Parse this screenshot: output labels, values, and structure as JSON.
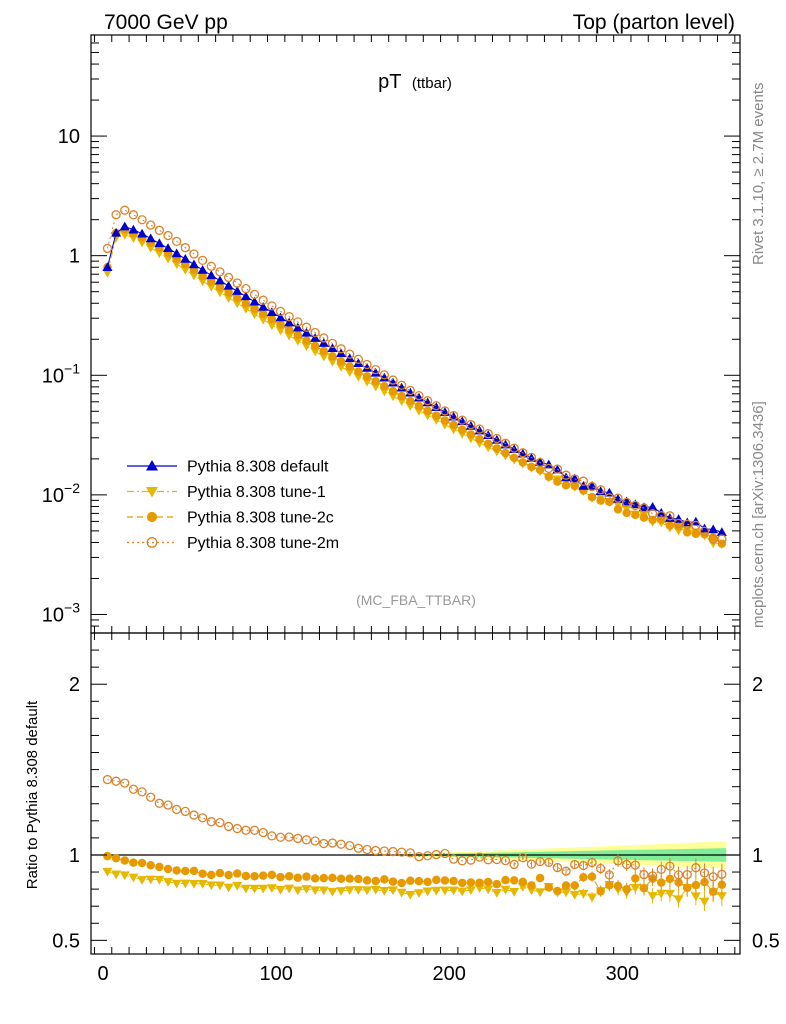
{
  "header": {
    "left": "7000 GeV pp",
    "right": "Top (parton level)"
  },
  "side_text": {
    "top": "Rivet 3.1.10, ≥ 2.7M events",
    "bottom": "mcplots.cern.ch [arXiv:1306.3436]"
  },
  "chart_data": [
    {
      "type": "scatter",
      "panel": "main",
      "title_main": "pT",
      "title_sub": "(ttbar)",
      "analysis_label": "(MC_FBA_TTBAR)",
      "yscale": "log",
      "ylim": [
        0.0007,
        70
      ],
      "xlim": [
        -7,
        368
      ],
      "ytick_labels": [
        {
          "value": 10,
          "mant": "10",
          "exp": ""
        },
        {
          "value": 1,
          "mant": "1",
          "exp": ""
        },
        {
          "value": 0.1,
          "mant": "10",
          "exp": "−1"
        },
        {
          "value": 0.01,
          "mant": "10",
          "exp": "−2"
        },
        {
          "value": 0.001,
          "mant": "10",
          "exp": "−3"
        }
      ],
      "legend_position": "lower-left",
      "series": [
        {
          "name": "Pythia 8.308 default",
          "color": "#0000cc",
          "marker": "triangle-up",
          "line": "solid",
          "nodes": [
            [
              2.5,
              0.8
            ],
            [
              7.5,
              1.55
            ],
            [
              12.5,
              1.75
            ],
            [
              20,
              1.6
            ],
            [
              40,
              1.1
            ],
            [
              60,
              0.72
            ],
            [
              80,
              0.48
            ],
            [
              100,
              0.32
            ],
            [
              120,
              0.215
            ],
            [
              140,
              0.145
            ],
            [
              160,
              0.1
            ],
            [
              180,
              0.068
            ],
            [
              200,
              0.047
            ],
            [
              220,
              0.033
            ],
            [
              240,
              0.023
            ],
            [
              260,
              0.0165
            ],
            [
              280,
              0.012
            ],
            [
              300,
              0.0092
            ],
            [
              320,
              0.0073
            ],
            [
              340,
              0.006
            ],
            [
              357.5,
              0.005
            ]
          ]
        },
        {
          "name": "Pythia 8.308 tune-1",
          "color": "#e6b800",
          "marker": "triangle-down",
          "line": "dashdot",
          "nodes": [
            [
              2.5,
              0.72
            ],
            [
              7.5,
              1.42
            ],
            [
              12.5,
              1.5
            ],
            [
              20,
              1.36
            ],
            [
              40,
              0.9
            ],
            [
              60,
              0.58
            ],
            [
              80,
              0.38
            ],
            [
              100,
              0.25
            ],
            [
              120,
              0.167
            ],
            [
              140,
              0.112
            ],
            [
              160,
              0.077
            ],
            [
              180,
              0.053
            ],
            [
              200,
              0.037
            ],
            [
              220,
              0.026
            ],
            [
              240,
              0.019
            ],
            [
              260,
              0.0138
            ],
            [
              280,
              0.0102
            ],
            [
              300,
              0.0077
            ],
            [
              320,
              0.006
            ],
            [
              340,
              0.0048
            ],
            [
              357.5,
              0.0039
            ]
          ]
        },
        {
          "name": "Pythia 8.308 tune-2c",
          "color": "#e69a00",
          "marker": "circle",
          "line": "dashed",
          "nodes": [
            [
              2.5,
              0.8
            ],
            [
              7.5,
              1.55
            ],
            [
              12.5,
              1.65
            ],
            [
              20,
              1.49
            ],
            [
              40,
              1.0
            ],
            [
              60,
              0.64
            ],
            [
              80,
              0.42
            ],
            [
              100,
              0.28
            ],
            [
              120,
              0.185
            ],
            [
              140,
              0.124
            ],
            [
              160,
              0.085
            ],
            [
              180,
              0.058
            ],
            [
              200,
              0.04
            ],
            [
              220,
              0.028
            ],
            [
              240,
              0.0195
            ],
            [
              260,
              0.0138
            ],
            [
              280,
              0.01
            ],
            [
              300,
              0.0076
            ],
            [
              320,
              0.006
            ],
            [
              340,
              0.0049
            ],
            [
              357.5,
              0.004
            ]
          ]
        },
        {
          "name": "Pythia 8.308 tune-2m",
          "color": "#d9822b",
          "marker": "open-circle",
          "line": "dotted",
          "nodes": [
            [
              2.5,
              1.15
            ],
            [
              7.5,
              2.2
            ],
            [
              12.5,
              2.4
            ],
            [
              20,
              2.1
            ],
            [
              40,
              1.4
            ],
            [
              60,
              0.86
            ],
            [
              80,
              0.56
            ],
            [
              100,
              0.36
            ],
            [
              120,
              0.24
            ],
            [
              140,
              0.158
            ],
            [
              160,
              0.106
            ],
            [
              180,
              0.071
            ],
            [
              200,
              0.048
            ],
            [
              220,
              0.034
            ],
            [
              240,
              0.0235
            ],
            [
              260,
              0.0165
            ],
            [
              280,
              0.012
            ],
            [
              300,
              0.009
            ],
            [
              320,
              0.0069
            ],
            [
              340,
              0.0055
            ],
            [
              357.5,
              0.0042
            ]
          ]
        }
      ]
    },
    {
      "type": "scatter",
      "panel": "ratio",
      "ylabel": "Ratio to Pythia 8.308 default",
      "ylim": [
        0.42,
        2.3
      ],
      "xlim": [
        -7,
        368
      ],
      "xticks": [
        0,
        100,
        200,
        300
      ],
      "yticks": [
        0.5,
        1,
        2
      ],
      "ytick_labels": [
        "0.5",
        "1",
        "2"
      ],
      "reference_line": 1,
      "reference_band": {
        "x": [
          175,
          200,
          225,
          250,
          275,
          300,
          325,
          350,
          360
        ],
        "yellow_half_width": [
          0.008,
          0.015,
          0.025,
          0.035,
          0.045,
          0.055,
          0.065,
          0.075,
          0.08
        ],
        "green_half_width": [
          0.004,
          0.008,
          0.013,
          0.018,
          0.023,
          0.028,
          0.033,
          0.038,
          0.04
        ]
      },
      "series": [
        {
          "name": "Pythia 8.308 tune-1",
          "color": "#e6b800",
          "marker": "triangle-down",
          "line": "dashdot",
          "nodes": [
            [
              2.5,
              0.9
            ],
            [
              20,
              0.86
            ],
            [
              50,
              0.83
            ],
            [
              100,
              0.8
            ],
            [
              150,
              0.79
            ],
            [
              200,
              0.785
            ],
            [
              250,
              0.8
            ],
            [
              300,
              0.78
            ],
            [
              357.5,
              0.77
            ]
          ]
        },
        {
          "name": "Pythia 8.308 tune-2c",
          "color": "#e69a00",
          "marker": "circle",
          "line": "dashed",
          "nodes": [
            [
              2.5,
              1.0
            ],
            [
              10,
              0.98
            ],
            [
              30,
              0.93
            ],
            [
              60,
              0.89
            ],
            [
              100,
              0.875
            ],
            [
              150,
              0.855
            ],
            [
              200,
              0.845
            ],
            [
              250,
              0.83
            ],
            [
              300,
              0.83
            ],
            [
              357.5,
              0.8
            ]
          ]
        },
        {
          "name": "Pythia 8.308 tune-2m",
          "color": "#d9822b",
          "marker": "open-circle",
          "line": "dotted",
          "nodes": [
            [
              2.5,
              1.44
            ],
            [
              12.5,
              1.42
            ],
            [
              30,
              1.32
            ],
            [
              60,
              1.2
            ],
            [
              100,
              1.11
            ],
            [
              150,
              1.04
            ],
            [
              200,
              0.99
            ],
            [
              250,
              0.95
            ],
            [
              300,
              0.92
            ],
            [
              357.5,
              0.87
            ]
          ]
        }
      ]
    }
  ]
}
